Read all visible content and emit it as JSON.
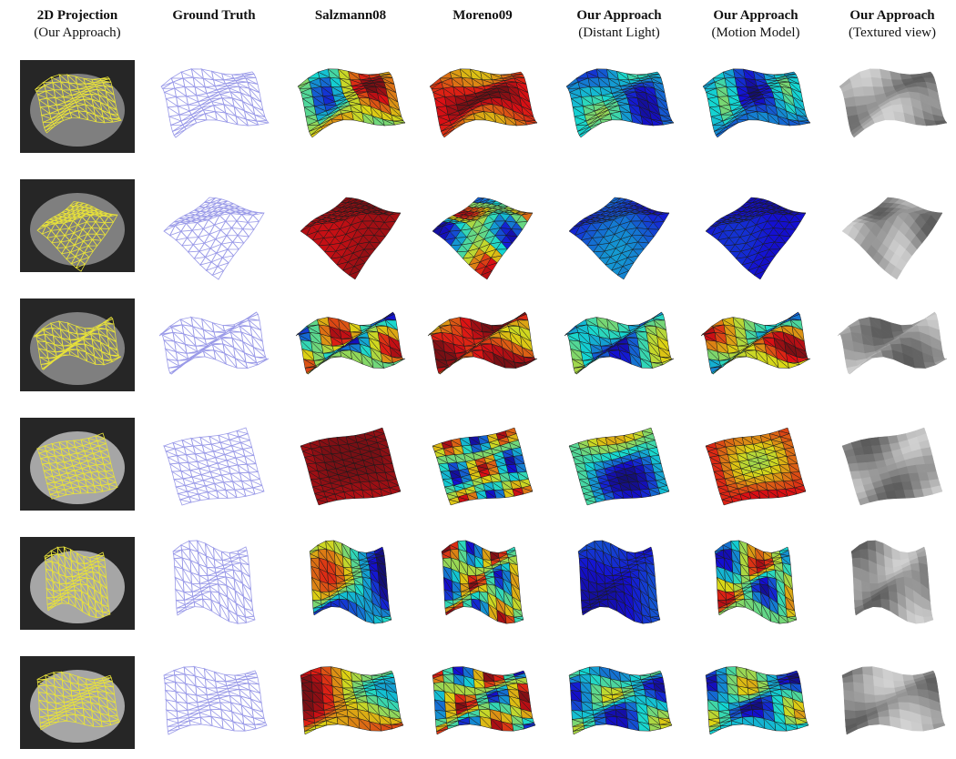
{
  "columns": [
    {
      "title": "2D Projection",
      "subtitle": "(Our Approach)"
    },
    {
      "title": "Ground Truth"
    },
    {
      "title": "Salzmann08"
    },
    {
      "title": "Moreno09"
    },
    {
      "title": "Our Approach",
      "subtitle": "(Distant Light)"
    },
    {
      "title": "Our Approach",
      "subtitle": "(Motion Model)"
    },
    {
      "title": "Our Approach",
      "subtitle": "(Textured view)"
    }
  ]
}
